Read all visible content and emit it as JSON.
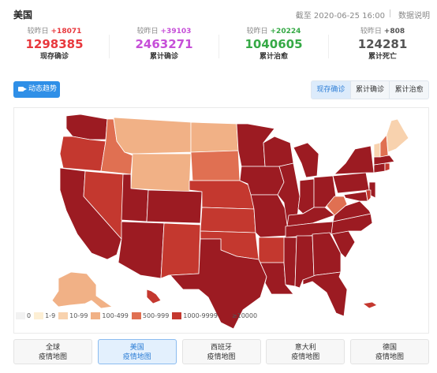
{
  "header": {
    "title": "美国",
    "as_of": "截至 2020-06-25 16:00",
    "explain_link": "数据说明"
  },
  "stats": [
    {
      "delta_label": "较昨日",
      "delta": "+18071",
      "value": "1298385",
      "label": "现存确诊",
      "color": "#e8383d"
    },
    {
      "delta_label": "较昨日",
      "delta": "+39103",
      "value": "2463271",
      "label": "累计确诊",
      "color": "#c64fd8"
    },
    {
      "delta_label": "较昨日",
      "delta": "+20224",
      "value": "1040605",
      "label": "累计治愈",
      "color": "#35a945"
    },
    {
      "delta_label": "较昨日",
      "delta": "+808",
      "value": "124281",
      "label": "累计死亡",
      "color": "#555555"
    }
  ],
  "trend_button": {
    "label": "动态趋势",
    "icon": "video-camera-icon"
  },
  "map_toggle": {
    "options": [
      "现存确诊",
      "累计确诊",
      "累计治愈"
    ],
    "selected": "现存确诊"
  },
  "legend": [
    {
      "label": "0",
      "color": "#f2f2f2"
    },
    {
      "label": "1-9",
      "color": "#fdefd4"
    },
    {
      "label": "10-99",
      "color": "#f8d2ae"
    },
    {
      "label": "100-499",
      "color": "#f1b186"
    },
    {
      "label": "500-999",
      "color": "#e07052"
    },
    {
      "label": "1000-9999",
      "color": "#c4382f"
    },
    {
      "label": "≥10000",
      "color": "#9c1b22"
    }
  ],
  "map_tabs": [
    {
      "line1": "全球",
      "line2": "疫情地图",
      "active": false
    },
    {
      "line1": "美国",
      "line2": "疫情地图",
      "active": true
    },
    {
      "line1": "西班牙",
      "line2": "疫情地图",
      "active": false
    },
    {
      "line1": "意大利",
      "line2": "疫情地图",
      "active": false
    },
    {
      "line1": "德国",
      "line2": "疫情地图",
      "active": false
    }
  ],
  "colors": {
    "accent": "#2f8fe7",
    "border": "#eaeaea"
  }
}
